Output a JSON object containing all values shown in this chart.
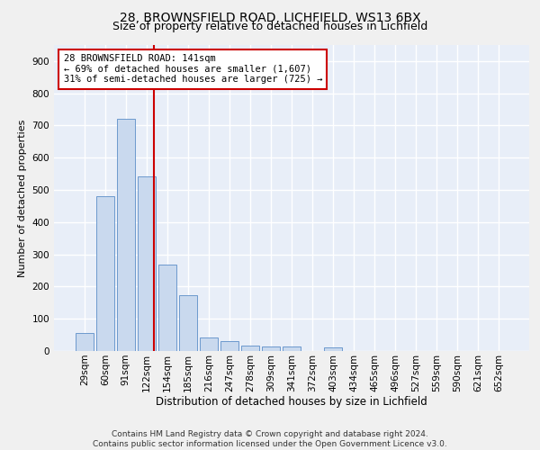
{
  "title1": "28, BROWNSFIELD ROAD, LICHFIELD, WS13 6BX",
  "title2": "Size of property relative to detached houses in Lichfield",
  "xlabel": "Distribution of detached houses by size in Lichfield",
  "ylabel": "Number of detached properties",
  "categories": [
    "29sqm",
    "60sqm",
    "91sqm",
    "122sqm",
    "154sqm",
    "185sqm",
    "216sqm",
    "247sqm",
    "278sqm",
    "309sqm",
    "341sqm",
    "372sqm",
    "403sqm",
    "434sqm",
    "465sqm",
    "496sqm",
    "527sqm",
    "559sqm",
    "590sqm",
    "621sqm",
    "652sqm"
  ],
  "values": [
    57,
    480,
    720,
    543,
    268,
    172,
    43,
    32,
    18,
    14,
    13,
    0,
    10,
    0,
    0,
    0,
    0,
    0,
    0,
    0,
    0
  ],
  "bar_color": "#c9d9ee",
  "bar_edge_color": "#5b8dc8",
  "vline_x": 3.35,
  "vline_color": "#cc0000",
  "annotation_text": "28 BROWNSFIELD ROAD: 141sqm\n← 69% of detached houses are smaller (1,607)\n31% of semi-detached houses are larger (725) →",
  "box_color": "#cc0000",
  "ylim": [
    0,
    950
  ],
  "background_color": "#e8eef8",
  "grid_color": "#ffffff",
  "footnote": "Contains HM Land Registry data © Crown copyright and database right 2024.\nContains public sector information licensed under the Open Government Licence v3.0.",
  "title1_fontsize": 10,
  "title2_fontsize": 9,
  "xlabel_fontsize": 8.5,
  "ylabel_fontsize": 8,
  "tick_fontsize": 7.5,
  "annot_fontsize": 7.5,
  "footnote_fontsize": 6.5
}
